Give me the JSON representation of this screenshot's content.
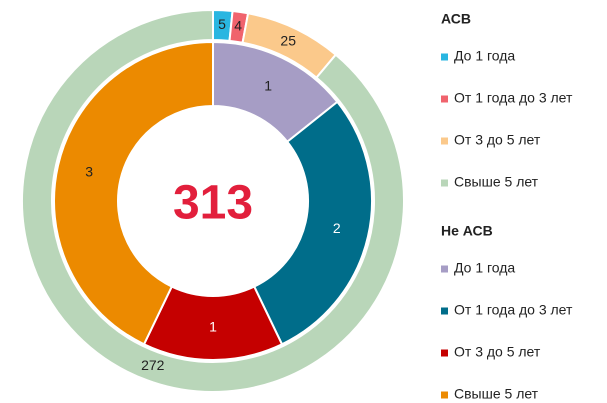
{
  "chart_data": {
    "type": "donut",
    "center_label": "313",
    "series": [
      {
        "name": "АСВ",
        "categories": [
          "До 1 года",
          "От 1 года до 3 лет",
          "От 3 до 5 лет",
          "Свыше 5 лет"
        ],
        "values": [
          5,
          4,
          25,
          272
        ],
        "colors": [
          "#29b6e1",
          "#f0636d",
          "#fbc98b",
          "#b9d6b9"
        ]
      },
      {
        "name": "Не АСВ",
        "categories": [
          "До 1 года",
          "От 1 года до 3 лет",
          "От 3 до 5 лет",
          "Свыше 5 лет"
        ],
        "values": [
          1,
          2,
          1,
          3
        ],
        "colors": [
          "#a69dc5",
          "#006d8a",
          "#c50000",
          "#ec8a00"
        ]
      }
    ]
  }
}
